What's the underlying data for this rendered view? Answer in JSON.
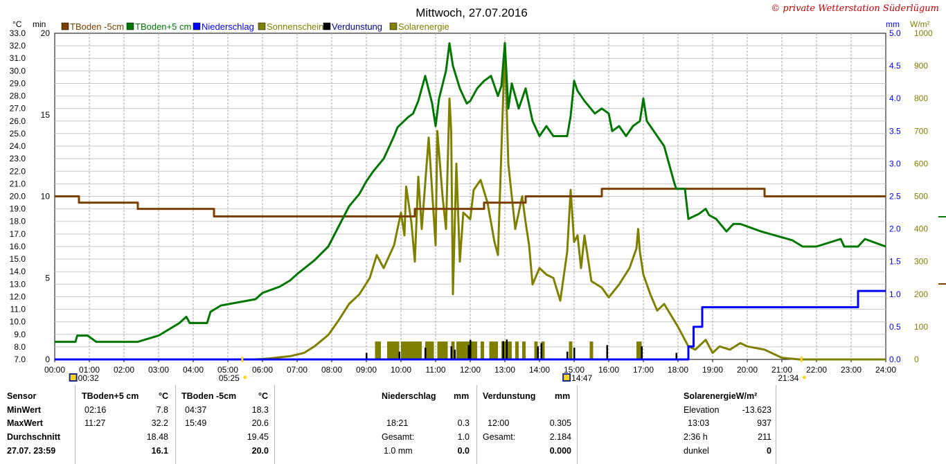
{
  "chart_data": {
    "type": "line",
    "title": "Mittwoch, 27.07.2016",
    "watermark": "© private Wetterstation Süderlügum",
    "left_axis_1": {
      "unit": "°C",
      "min": 7.0,
      "max": 33.0,
      "step": 1.0,
      "labels": [
        "7.0",
        "8.0",
        "9.0",
        "10.0",
        "11.0",
        "12.0",
        "13.0",
        "14.0",
        "15.0",
        "16.0",
        "17.0",
        "18.0",
        "19.0",
        "20.0",
        "21.0",
        "22.0",
        "23.0",
        "24.0",
        "25.0",
        "26.0",
        "27.0",
        "28.0",
        "29.0",
        "30.0",
        "31.0",
        "32.0",
        "33.0"
      ]
    },
    "left_axis_2": {
      "unit": "min",
      "min": 0,
      "max": 20,
      "labels": [
        "0",
        "5",
        "10",
        "15",
        "20"
      ]
    },
    "right_axis_1": {
      "unit": "mm",
      "min": 0.0,
      "max": 5.0,
      "labels": [
        "0.0",
        "0.5",
        "1.0",
        "1.5",
        "2.0",
        "2.5",
        "3.0",
        "3.5",
        "4.0",
        "4.5",
        "5.0"
      ]
    },
    "right_axis_2": {
      "unit": "W/m²",
      "min": 0,
      "max": 1000,
      "labels": [
        "0",
        "100",
        "200",
        "300",
        "400",
        "500",
        "600",
        "700",
        "800",
        "900",
        "1000"
      ]
    },
    "x_axis": {
      "min": 0,
      "max": 24,
      "labels": [
        "00:00",
        "01:00",
        "02:00",
        "03:00",
        "04:00",
        "05:00",
        "06:00",
        "07:00",
        "08:00",
        "09:00",
        "10:00",
        "11:00",
        "12:00",
        "13:00",
        "14:00",
        "15:00",
        "16:00",
        "17:00",
        "18:00",
        "19:00",
        "20:00",
        "21:00",
        "22:00",
        "23:00",
        "24:00"
      ]
    },
    "legend": [
      {
        "name": "TBoden -5cm",
        "color": "#7b3f00"
      },
      {
        "name": "TBoden+5 cm",
        "color": "#007700"
      },
      {
        "name": "Niederschlag",
        "color": "#0000ff"
      },
      {
        "name": "Sonnenschein",
        "color": "#808000"
      },
      {
        "name": "Verdunstung",
        "color": "#000000"
      },
      {
        "name": "Solarenergie",
        "color": "#808000"
      }
    ],
    "markers": [
      {
        "time": "00:32",
        "hour": 0.533,
        "icon": "moon-icon"
      },
      {
        "time": "05:25",
        "hour": 5.417,
        "icon": "sunrise-icon"
      },
      {
        "time": "14:47",
        "hour": 14.783,
        "icon": "moon-icon"
      },
      {
        "time": "21:34",
        "hour": 21.567,
        "icon": "sunset-icon"
      }
    ],
    "series": [
      {
        "name": "TBoden -5cm",
        "axis": "celsius",
        "color": "#7b3f00",
        "step": true,
        "x": [
          0,
          0.7,
          0.7,
          2.4,
          2.4,
          4.6,
          4.6,
          10.4,
          10.4,
          11.5,
          11.5,
          12.4,
          12.4,
          13.6,
          13.6,
          15.8,
          15.8,
          20.5,
          20.5,
          24
        ],
        "y": [
          20.0,
          20.0,
          19.5,
          19.5,
          19.0,
          19.0,
          18.4,
          18.4,
          19.0,
          19.0,
          19.0,
          19.0,
          19.5,
          19.5,
          20.0,
          20.0,
          20.6,
          20.6,
          20.0,
          20.0
        ]
      },
      {
        "name": "TBoden+5 cm",
        "axis": "celsius",
        "color": "#007700",
        "x": [
          0,
          0.6,
          0.65,
          0.95,
          1.2,
          2.4,
          3.0,
          3.6,
          3.8,
          3.9,
          4.4,
          4.5,
          4.8,
          5.8,
          6.0,
          6.5,
          6.8,
          7.0,
          7.5,
          7.9,
          8.2,
          8.5,
          8.8,
          9.0,
          9.2,
          9.5,
          9.8,
          9.9,
          10.2,
          10.35,
          10.5,
          10.7,
          10.9,
          11.0,
          11.1,
          11.3,
          11.4,
          11.5,
          11.7,
          11.9,
          12.0,
          12.2,
          12.4,
          12.6,
          12.8,
          12.9,
          13.0,
          13.1,
          13.2,
          13.4,
          13.6,
          13.8,
          14.0,
          14.2,
          14.4,
          14.8,
          14.9,
          15.0,
          15.1,
          15.3,
          15.6,
          15.8,
          16.0,
          16.1,
          16.3,
          16.5,
          16.7,
          16.9,
          17.0,
          17.1,
          17.4,
          17.6,
          17.9,
          17.95,
          18.2,
          18.3,
          18.6,
          18.8,
          18.9,
          19.1,
          19.4,
          19.6,
          19.8,
          20.4,
          21.3,
          21.6,
          22.0,
          22.7,
          22.8,
          23.2,
          23.4,
          24
        ],
        "y": [
          8.4,
          8.4,
          8.9,
          8.9,
          8.4,
          8.4,
          8.9,
          9.9,
          10.4,
          9.9,
          9.9,
          10.8,
          11.3,
          11.8,
          12.3,
          12.8,
          13.3,
          13.8,
          14.9,
          16.0,
          17.6,
          19.2,
          20.2,
          21.2,
          22.0,
          23.0,
          24.8,
          25.5,
          26.3,
          26.6,
          27.6,
          29.6,
          27.4,
          25.6,
          27.8,
          30.0,
          32.2,
          30.4,
          28.6,
          27.4,
          27.6,
          28.6,
          29.2,
          29.6,
          28.0,
          28.8,
          32.2,
          27.0,
          29.0,
          27.0,
          28.6,
          26.0,
          24.8,
          25.6,
          24.8,
          24.8,
          26.4,
          29.2,
          28.4,
          27.6,
          26.6,
          27.0,
          26.6,
          25.2,
          25.6,
          24.8,
          25.6,
          26.0,
          27.8,
          26.0,
          24.8,
          24.0,
          21.0,
          20.6,
          20.6,
          18.2,
          18.6,
          19.0,
          18.5,
          18.2,
          17.2,
          17.8,
          17.8,
          17.2,
          16.5,
          16.0,
          16.0,
          16.6,
          16.0,
          16.0,
          16.6,
          16.0
        ]
      },
      {
        "name": "Niederschlag",
        "axis": "mm",
        "color": "#0000ff",
        "step": true,
        "x": [
          0,
          18.3,
          18.3,
          18.45,
          18.45,
          18.7,
          18.7,
          23.2,
          23.2,
          24
        ],
        "y": [
          0,
          0,
          0.2,
          0.2,
          0.5,
          0.5,
          0.8,
          0.8,
          1.05,
          1.05
        ]
      },
      {
        "name": "Solarenergie",
        "axis": "wm2",
        "color": "#808000",
        "x": [
          0,
          5.8,
          6.2,
          6.8,
          7.2,
          7.5,
          7.9,
          8.2,
          8.5,
          8.8,
          9.1,
          9.3,
          9.5,
          9.8,
          10.0,
          10.1,
          10.15,
          10.3,
          10.4,
          10.5,
          10.6,
          10.8,
          11.0,
          11.05,
          11.2,
          11.3,
          11.4,
          11.45,
          11.5,
          11.6,
          11.7,
          11.8,
          12.0,
          12.1,
          12.3,
          12.5,
          12.7,
          12.8,
          12.95,
          13.0,
          13.1,
          13.3,
          13.4,
          13.5,
          13.6,
          13.7,
          13.8,
          14.0,
          14.2,
          14.4,
          14.6,
          14.8,
          14.9,
          15.0,
          15.1,
          15.2,
          15.3,
          15.5,
          15.8,
          16.0,
          16.3,
          16.6,
          16.8,
          16.85,
          16.9,
          17.0,
          17.2,
          17.4,
          17.6,
          18.0,
          18.3,
          18.5,
          18.8,
          19.0,
          19.2,
          19.5,
          19.8,
          20.0,
          20.5,
          21.0,
          21.5,
          22.0,
          24
        ],
        "y": [
          0,
          0,
          3,
          10,
          20,
          40,
          75,
          120,
          170,
          200,
          250,
          320,
          280,
          350,
          450,
          380,
          530,
          420,
          300,
          560,
          400,
          680,
          350,
          700,
          500,
          400,
          800,
          700,
          200,
          600,
          300,
          450,
          430,
          520,
          550,
          480,
          360,
          320,
          800,
          970,
          600,
          400,
          450,
          500,
          420,
          350,
          230,
          280,
          260,
          250,
          180,
          330,
          520,
          360,
          380,
          280,
          380,
          240,
          220,
          190,
          230,
          280,
          340,
          400,
          330,
          260,
          200,
          150,
          170,
          100,
          40,
          30,
          60,
          20,
          40,
          30,
          50,
          40,
          30,
          5,
          0,
          0,
          0
        ]
      },
      {
        "name": "Sonnenschein",
        "axis": "min",
        "color": "#808000",
        "type": "bars",
        "intervals": [
          [
            9.25,
            9.42
          ],
          [
            9.6,
            9.95
          ],
          [
            10.0,
            10.6
          ],
          [
            10.7,
            10.95
          ],
          [
            11.05,
            11.35
          ],
          [
            11.45,
            11.55
          ],
          [
            11.6,
            12.0
          ],
          [
            12.0,
            12.2
          ],
          [
            12.3,
            12.4
          ],
          [
            12.55,
            12.8
          ],
          [
            12.9,
            13.2
          ],
          [
            13.3,
            13.4
          ],
          [
            13.5,
            13.6
          ],
          [
            13.85,
            13.95
          ],
          [
            14.05,
            14.15
          ],
          [
            14.85,
            14.95
          ],
          [
            15.45,
            15.55
          ],
          [
            16.8,
            16.95
          ]
        ],
        "value": 1.1
      },
      {
        "name": "Verdunstung",
        "axis": "mm",
        "color": "#000000",
        "type": "bars",
        "times": [
          9.0,
          9.95,
          10.7,
          11.45,
          11.55,
          11.95,
          12.0,
          12.95,
          13.05,
          13.95,
          14.05,
          14.8,
          15.0,
          15.95,
          16.95,
          17.95
        ],
        "values": [
          0.1,
          0.12,
          0.18,
          0.2,
          0.15,
          0.22,
          0.3,
          0.28,
          0.305,
          0.2,
          0.25,
          0.12,
          0.18,
          0.22,
          0.2,
          0.1
        ]
      }
    ]
  },
  "stats": {
    "sensor_label": "Sensor",
    "minwert_label": "MinWert",
    "maxwert_label": "MaxWert",
    "durchschnitt_label": "Durchschnitt",
    "date_label": "27.07. 23:59",
    "tb5": {
      "header": "TBoden+5 cm",
      "unit": "°C",
      "min_time": "02:16",
      "min_val": "7.8",
      "max_time": "11:27",
      "max_val": "32.2",
      "avg": "18.48",
      "current": "16.1"
    },
    "tbm5": {
      "header": "TBoden -5cm",
      "unit": "°C",
      "min_time": "04:37",
      "min_val": "18.3",
      "max_time": "15:49",
      "max_val": "20.6",
      "avg": "19.45",
      "current": "20.0"
    },
    "rain": {
      "header": "Niederschlag",
      "unit": "mm",
      "max_time": "18:21",
      "max_val": "0.3",
      "gesamt_label": "Gesamt:",
      "gesamt_val": "1.0",
      "threshold_label": "1.0 mm",
      "threshold_val": "0.0"
    },
    "evap": {
      "header": "Verdunstung",
      "unit": "mm",
      "max_time": "12:00",
      "max_val": "0.305",
      "gesamt_label": "Gesamt:",
      "gesamt_val": "2.184",
      "current": "0.000"
    },
    "solar": {
      "header": "SolarenergieW/m²",
      "elevation_label": "Elevation",
      "elevation_val": "-13.623",
      "max_time": "13:03",
      "max_val": "937",
      "duration_label": "2:36 h",
      "duration_val": "211",
      "dunkel_label": "dunkel",
      "dunkel_val": "0"
    }
  }
}
